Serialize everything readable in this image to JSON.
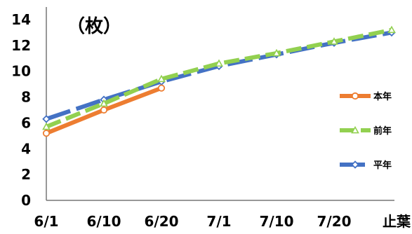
{
  "chart_data": {
    "type": "line",
    "unit_label": "（枚）",
    "x_categories": [
      "6/1",
      "6/10",
      "6/20",
      "7/1",
      "7/10",
      "7/20",
      "止葉"
    ],
    "ylim": [
      0,
      14
    ],
    "y_ticks": [
      0,
      2,
      4,
      6,
      8,
      10,
      12,
      14
    ],
    "grid": false,
    "legend_position": "right",
    "series": [
      {
        "name": "本年",
        "color": "#ED7D31",
        "dash": "solid",
        "marker": "circle",
        "values": [
          5.2,
          7.0,
          8.7,
          null,
          null,
          null,
          null
        ]
      },
      {
        "name": "前年",
        "color": "#92D050",
        "dash": "dashed-short",
        "marker": "triangle",
        "values": [
          5.7,
          7.5,
          9.4,
          10.6,
          11.4,
          12.3,
          13.2
        ]
      },
      {
        "name": "平年",
        "color": "#4472C4",
        "dash": "dashed-long",
        "marker": "diamond",
        "values": [
          6.3,
          7.8,
          9.2,
          10.4,
          11.3,
          12.2,
          13.0
        ]
      }
    ]
  }
}
